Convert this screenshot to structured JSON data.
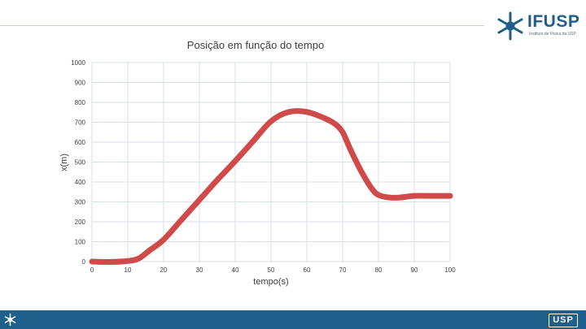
{
  "header": {
    "logo_text": "IFUSP",
    "logo_subtitle": "Instituto de Física da USP"
  },
  "chart_data": {
    "type": "line",
    "title": "Posição em função do tempo",
    "xlabel": "tempo(s)",
    "ylabel": "x(m)",
    "xlim": [
      0,
      100
    ],
    "ylim": [
      0,
      1000
    ],
    "xticks": [
      0,
      10,
      20,
      30,
      40,
      50,
      60,
      70,
      80,
      90,
      100
    ],
    "yticks": [
      0,
      100,
      200,
      300,
      400,
      500,
      600,
      700,
      800,
      900,
      1000
    ],
    "grid": true,
    "series": [
      {
        "color": "#d04a4a",
        "x": [
          0,
          5,
          10,
          13,
          16,
          20,
          25,
          30,
          35,
          40,
          45,
          50,
          55,
          60,
          65,
          68,
          70,
          72,
          75,
          78,
          80,
          83,
          86,
          90,
          95,
          100
        ],
        "y": [
          0,
          -2,
          3,
          15,
          55,
          110,
          210,
          310,
          410,
          505,
          605,
          705,
          752,
          752,
          720,
          690,
          650,
          570,
          460,
          370,
          335,
          322,
          322,
          330,
          330,
          330
        ]
      }
    ]
  },
  "footer": {
    "logo_text": "USP"
  }
}
